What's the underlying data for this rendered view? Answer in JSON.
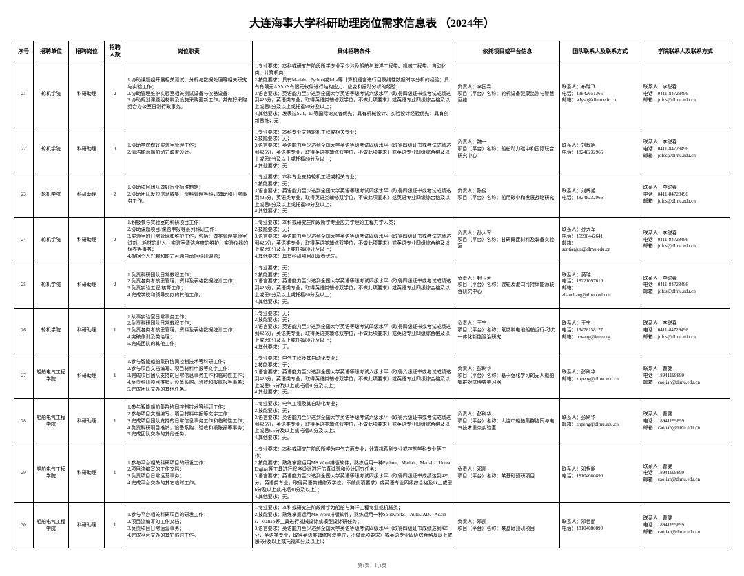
{
  "title": "大连海事大学科研助理岗位需求信息表 （2024年）",
  "headers": {
    "seq": "序号",
    "unit": "招聘单位",
    "post": "招聘岗位",
    "num": "招聘人数",
    "duty": "岗位职责",
    "req": "具体招聘条件",
    "proj": "依托项目或平台信息",
    "team": "团队联系人及联系方式",
    "coll": "学院联系人及联系方式"
  },
  "rows": [
    {
      "seq": "21",
      "unit": "轮机学院",
      "post": "科研助理",
      "num": "2",
      "duty": "1.协助课题组开展相关测试、分析与数据处理等相关研究与实验工作；\n2.协助管理维护实验室相关测试设备与仪器设备；\n3.协助规划课题组材料及设施采购更新工作，并做好采购组合办公室日常行政事务。",
      "req": "1.专业要求：本科或研究生阶段所学专业至少涉及船舶与海洋工程类、机械工程类、自动化类、计算机类；\n2.技能要求：具有Matlab、Python或Julia等计算机语言进行目录线性数据时序分析的经验；具有有限元ANSYS有限元软件进行结构应力、应变和振动分析的经验；\n3.语言要求：英语能力至少达到全国大学英语等级考试六级水平（取得四级证书或考试成绩达到425分，英语类专业，取得英语类辅修双学位，不做此项要求）或英语专业四级综合格及以上或思6分及以上或托福90分及以上；\n4.其他要求：发表过SCI、EI等国际论文者优先；具有机械设计、实验设计经验优先；具有创新思维；无",
      "proj": "负责人：李国霖\n项目（平台）名称：轮机设备健康监测与智慧运维",
      "team": "联系人：布瑞飞\n电话：13842651365\n邮箱：wlysp@dlmu.edu.cn",
      "coll": "联系人：李聪春\n电话：0411-84728496\n邮箱：jofos@dlmu.edu.cn"
    },
    {
      "seq": "22",
      "unit": "轮机学院",
      "post": "科研助理",
      "num": "3",
      "duty": "1.协助学院做好实验室管理工作；\n2.清洁能源船舶动力装置设计。",
      "req": "1.专业要求：本科专业支持轮机工程或相关专业；\n2.技能要求：无；\n3.语言要求：英语能力至少达到全国大学英语等级考试四级水平（取得四级证书或考试成绩达到425分，英语类专业，取得英语类辅修双学位，不做此项要求）或英语专业四级综合格及以上或思6分及以上或托福80分及以上；\n4.其他要求：无",
      "proj": "负责人：魏一\n项目（平台）名称：船舶动力碳中和国际联合研究中心",
      "team": "联系人：刘辉旭\n电话：18248232966",
      "coll": "联系人：李聪春\n电话：0411-84728496\n邮箱：jofos@dlmu.edu.cn"
    },
    {
      "seq": "23",
      "unit": "轮机学院",
      "post": "科研助理",
      "num": "2",
      "duty": "1.协助项目团队做好行业标准制定；\n2.协助团队发短信息收集、资料管理等科研辅助和日常事务工作。",
      "req": "1.专业要求：本科专业支持轮机工程或相关专业；\n2.技能要求：无；\n3.语言要求：英语能力至少达到全国大学英语等级考试四级水平（取得四级证书或考试成绩达到425分，英语类专业，取得英语类辅修双学位，不做此项要求）或英语专业四级综合格及以上或思6分及以上或托福80分及以上；\n4.其他要求：无",
      "proj": "负责人：陈俊\n项目（平台）名称：船用碳中和发展战略研究",
      "team": "联系人：刘辉旭\n电话：18248232966",
      "coll": "联系人：李聪春\n电话：0411-84728496\n邮箱：jofos@dlmu.edu.cn"
    },
    {
      "seq": "24",
      "unit": "轮机学院",
      "post": "科研助理",
      "num": "2",
      "duty": "1.积极参与实验室的科研项目工作；\n2.协助课题项目/课题申报等系列科研工作；\n3.实验室的日常管理和维护工作，包括：做类管理实验室试剂、耗材的出入、实验室清洁序度的维护、实验仪器的保养等事务；\n4.根据个人兴趣和能力可独自承担科研课题；",
      "req": "1.专业要求：本科或研究生阶段所学专业应力学理论工程力学人类；\n2.技能要求：无；\n3.语言要求：英语能力至少达到全国大学英语等级考试四级水平（取得四级证书或考试成绩达到425分，英语类专业，取得英语类辅修双学位，不做此项要求）或英语专业四级综合格及以上或思6分及以上或托福80分及以上；\n4.其他要求：具有科研项目研发者优先。",
      "proj": "负责人：孙大军\n项目（平台）名称：甘研既接材料及装备实验室",
      "team": "联系人：孙大军\n电话：15998442641\n邮箱：\nsuntianjun@dlmu.edu.cn",
      "coll": "联系人：李聪春\n电话：0411-84728496\n邮箱：jofos@dlmu.edu.cn"
    },
    {
      "seq": "25",
      "unit": "轮机学院",
      "post": "科研助理",
      "num": "2",
      "duty": "1.负责科研团队日常教程工作；\n2.负责各类考核思管理，资料及表格数据统计工作；\n3.负责实验工程/核算工作；\n4.完成学校和领导交办的其他工作。",
      "req": "1.专业要求：无；\n2.技能要求：无；\n3.语言要求：英语能力至少达到全国大学英语等级考试四级水平（取得四级证书或考试成绩达到425分，英语类专业，取得英语类辅修双学位，不做此项要求）或英语专业四级综合格及以上或思6分及以上或托福80分及以上；\n4.其他要求：无。",
      "proj": "负责人：封玉舍\n项目（平台）名称：渡轮及港口可持续能源联合研究中心",
      "team": "联系人：黄瑞\n电话：18221097610\n邮箱：\nzhanchang@dlmu.edu.cn",
      "coll": "联系人：李聪春\n电话：0411-84728496\n邮箱：jofos@dlmu.edu.cn"
    },
    {
      "seq": "26",
      "unit": "轮机学院",
      "post": "科研助理",
      "num": "1",
      "duty": "1.从事实验室日常事务工作；\n2.负责科研团队日常教程工作；\n3.负责各类考核思管理，资料及表格数据统计工作；\n4.突破作训及类治理；\n5.完成团队的其他工作；",
      "req": "1.专业要求：无；\n2.技能要求：无；\n3.语言要求：英语能力至少达到全国大学英语等级考试四级水平（取得四级证书或考试成绩达到425分，英语类专业，取得英语类辅修双学位，不做此项要求）或英语专业四级综合格及以上或思6分及以上或托福80分及以上；\n4.其他要求：无。",
      "proj": "负责人：王宁\n项目（平台）名称：氟燃料电池船舶运行-动力一体化新能源治研究",
      "team": "联系人：王宁\n电话：13478158177\n邮箱：n.wang@ieee.org",
      "coll": "联系人：李聪春\n电话：0411-84728496\n邮箱：jofos@dlmu.edu.cn"
    },
    {
      "seq": "27",
      "unit": "船舶电气工程学院",
      "post": "科研助理",
      "num": "1",
      "duty": "1.参与智能船舶集群协同控制技术等科研工作；\n2.参与项目文档编写、项目材料申报等文字工作；\n3.完成项目团队支持的日常信息事务工作和临时性工作；\n4.负责科研项目推销，设备系购、验收和报账报等事务；\n5.完成团队交办的其他任务。",
      "req": "1.专业要求：电气工程及其自动化专业；\n2.技能要求：无；\n3.语言要求：英语能力至少达到全国大学英语等级考试六级水平（取得六级证书或考试成绩达到425分，英语类专业，取得英语类辅修双学位，不做此项要求）或英语专业四级综合格及以上或思6.5分及以上或托福90分及以上；\n4.其他要求：无。",
      "proj": "负责人：彭刷华\n项目（平台）名称：基于强化学习的无人船舶集群对抗博弈学习器",
      "team": "联系人：彭刷华\n邮箱：zhpeng@dlmu.edu.cn",
      "coll": "联系人：曹健\n电话：18941199899\n邮箱：caojian@dlmu.edu.cn"
    },
    {
      "seq": "28",
      "unit": "船舶电气工程学院",
      "post": "科研助理",
      "num": "1",
      "duty": "1.参与智能船舶集群协同控制技术等科研工作；\n2.参与项目文档编写、项目材料申报等文字工作；\n3.完成项目团队支持的日常信息事务工作和临时性工作；\n4.负责科研项目推销，设备系购、验收和报账报等事务；\n5.完成团队交办的其他任务。",
      "req": "1.专业要求：电气工程及其自动化专业；\n2.技能要求：无；\n3.语言要求：英语能力至少达到全国大学英语等级考试六级水平（取得六级证书或考试成绩达到425分，英语类专业，取得英语类辅修双学位，不做此项要求）或英语专业四级综合格及以上或思6.5分及以上或托福90分及以上；\n4.其他要求：无。",
      "proj": "负责人：彭刷华\n项目（平台）名称：大连市船舶集群协同与电气技术重点实验室",
      "team": "联系人：彭刷华\n邮箱：zhpeng@dlmu.edu.cn",
      "coll": "联系人：曹健\n电话：18941199899\n邮箱：caojian@dlmu.edu.cn"
    },
    {
      "seq": "29",
      "unit": "船舶电气工程学院",
      "post": "科研助理",
      "num": "1",
      "duty": "1.参与平台相关科研项目的研发工作；\n2.项目流编写的工作文档；\n3.负责项目日常运营事务；\n4.完成平台交办的其它临时工作。",
      "req": "1.专业要求：本科或研究生阶段所学为电气方面专业，计算机系列专业或控制学科专业等工作；\n2.技能要求：熟练掌握运用MS Word排版软件，熟练运用一种Python、Matlab、Matlab、Unreal Engine等工具进行程序设计进行仿真试验和设计研究任务；\n3.语言要求：英语能力至少达到全国大学英语等级考试四级水平（取得四级证书成绩达到425分，英语类专业，取得英语类辅修双学位，不做此项要求）或英语专业四级综合格及以上或思6分及以上或托福80分及以上）；\n4.其他要求：无。",
      "proj": "负责人：邓凯\n项目（平台）名称：某基础预研项目",
      "team": "联系人：邓哲朋\n电话：18104080890",
      "coll": "联系人：曹健\n电话：18941199899\n邮箱：caojian@dlmu.edu.cn"
    },
    {
      "seq": "30",
      "unit": "船舶电气工程学院",
      "post": "科研助理",
      "num": "1",
      "duty": "1.参与平台相关科研项目的研发工作；\n2.项目流编写的工作文档；\n3.负责项目日常运营事务；\n4.完成平台交办的其它临时工作。",
      "req": "1.专业要求：本科或研究生阶段所学为船舶与海洋工程专业或机械类；\n2.技能要求：熟练掌握运用MS Word排版软件，熟练运用一种Solidworks、AutoCAD、Adams、Matlab等工具进行机械设计或模型设计研任务；\n3.语言要求：英语能力至少达到全国大学英语等级考试四级水平（取得四级证书成绩达到425分，英语类专业，取得英语类辅修额双学位，不做此项要求）或英语专业四级综合格及以上或思6分及以上或托福80分及以上）；",
      "proj": "负责人：邓凯\n项目（平台）名称：某基础预研项目",
      "team": "联系人：邓哲朋\n电话：18104080890",
      "coll": "联系人：曹健\n电话：18941199899\n邮箱：caojian@dlmu.edu.cn"
    }
  ],
  "footer": "第1页，共1页"
}
